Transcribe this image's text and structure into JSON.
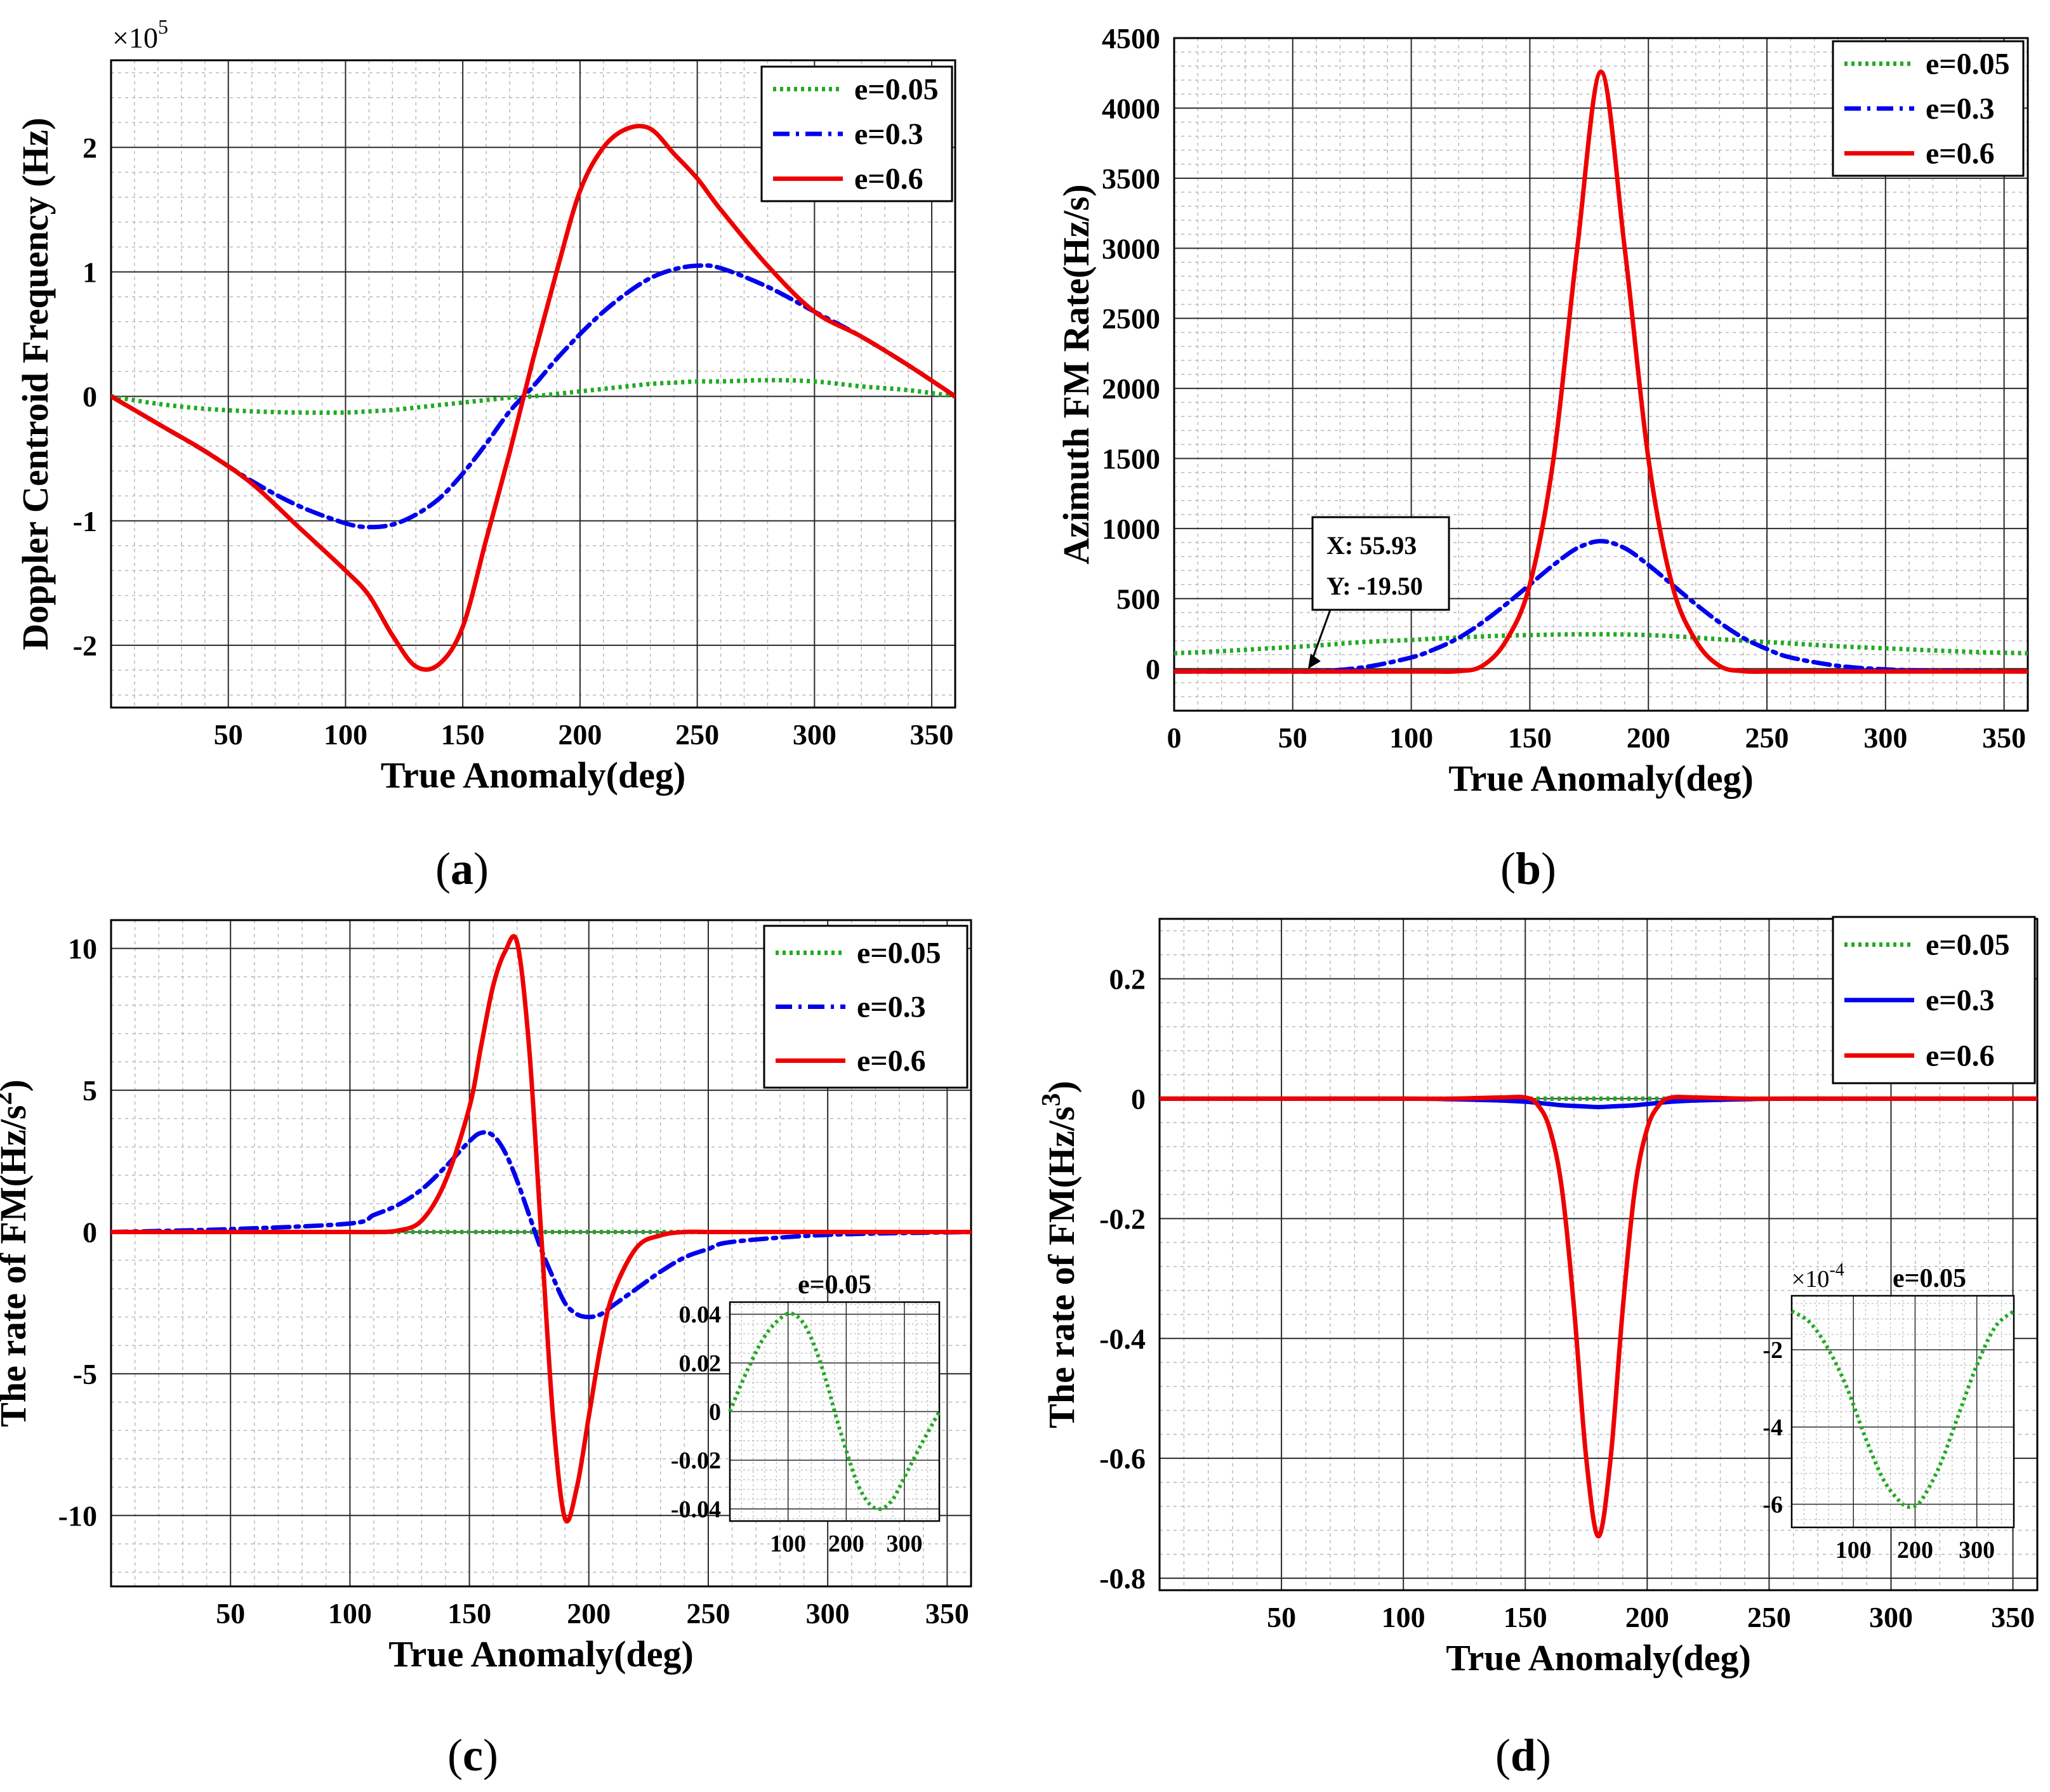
{
  "chart_data": [
    {
      "type": "line",
      "panel_label": "(a)",
      "xlabel": "True Anomaly(deg)",
      "ylabel": "Doppler Centroid Frequency (Hz)",
      "y_multiplier": "×10",
      "y_exponent": "5",
      "xlim": [
        0,
        360
      ],
      "ylim": [
        -2.5,
        2.7
      ],
      "xticks": [
        50,
        100,
        150,
        200,
        250,
        300,
        350
      ],
      "xtick_labels": [
        "50",
        "100",
        "150",
        "200",
        "250",
        "300",
        "350"
      ],
      "yticks": [
        -2,
        -1,
        0,
        1,
        2
      ],
      "ytick_labels": [
        "-2",
        "-1",
        "0",
        "1",
        "2"
      ],
      "grid": true,
      "legend_position": "top-right",
      "x": [
        0,
        20,
        40,
        60,
        80,
        100,
        110,
        120,
        130,
        140,
        150,
        160,
        170,
        180,
        190,
        200,
        210,
        220,
        230,
        240,
        250,
        260,
        280,
        300,
        320,
        340,
        360
      ],
      "series": [
        {
          "name": "e=0.05",
          "color": "#22aa22",
          "style": "dotted",
          "values": [
            0,
            -0.06,
            -0.1,
            -0.12,
            -0.13,
            -0.13,
            -0.12,
            -0.11,
            -0.09,
            -0.07,
            -0.05,
            -0.03,
            -0.01,
            0,
            0.02,
            0.04,
            0.06,
            0.08,
            0.1,
            0.11,
            0.12,
            0.12,
            0.13,
            0.12,
            0.08,
            0.05,
            0
          ]
        },
        {
          "name": "e=0.3",
          "color": "#0000ee",
          "style": "dashdot",
          "values": [
            0,
            -0.22,
            -0.44,
            -0.68,
            -0.88,
            -1.02,
            -1.05,
            -1.03,
            -0.95,
            -0.82,
            -0.62,
            -0.38,
            -0.12,
            0.08,
            0.3,
            0.5,
            0.68,
            0.83,
            0.95,
            1.02,
            1.05,
            1.03,
            0.88,
            0.68,
            0.48,
            0.25,
            0
          ]
        },
        {
          "name": "e=0.6",
          "color": "#ee0000",
          "style": "solid",
          "values": [
            0,
            -0.22,
            -0.44,
            -0.7,
            -1.05,
            -1.4,
            -1.6,
            -1.92,
            -2.17,
            -2.15,
            -1.85,
            -1.15,
            -0.45,
            0.3,
            1.0,
            1.65,
            2.0,
            2.15,
            2.15,
            1.95,
            1.75,
            1.5,
            1.05,
            0.68,
            0.48,
            0.25,
            0
          ]
        }
      ]
    },
    {
      "type": "line",
      "panel_label": "(b)",
      "xlabel": "True Anomaly(deg)",
      "ylabel": "Azimuth FM Rate(Hz/s)",
      "xlim": [
        0,
        360
      ],
      "ylim": [
        -300,
        4500
      ],
      "xticks": [
        0,
        50,
        100,
        150,
        200,
        250,
        300,
        350
      ],
      "xtick_labels": [
        "0",
        "50",
        "100",
        "150",
        "200",
        "250",
        "300",
        "350"
      ],
      "yticks": [
        0,
        500,
        1000,
        1500,
        2000,
        2500,
        3000,
        3500,
        4000,
        4500
      ],
      "ytick_labels": [
        "0",
        "500",
        "1000",
        "1500",
        "2000",
        "2500",
        "3000",
        "3500",
        "4000",
        "4500"
      ],
      "grid": true,
      "legend_position": "top-right",
      "datatip": {
        "x_label": "X: 55.93",
        "y_label": "Y: -19.50",
        "x": 55.93,
        "y": -19.5
      },
      "x": [
        0,
        20,
        40,
        60,
        80,
        100,
        110,
        120,
        130,
        140,
        150,
        160,
        170,
        180,
        190,
        200,
        210,
        220,
        230,
        240,
        250,
        260,
        280,
        300,
        320,
        340,
        360
      ],
      "series": [
        {
          "name": "e=0.05",
          "color": "#22aa22",
          "style": "dotted",
          "values": [
            110,
            125,
            145,
            165,
            190,
            205,
            215,
            222,
            230,
            236,
            240,
            243,
            245,
            245,
            244,
            240,
            232,
            222,
            210,
            200,
            190,
            180,
            160,
            145,
            130,
            118,
            110
          ]
        },
        {
          "name": "e=0.3",
          "color": "#0000ee",
          "style": "dashdot",
          "values": [
            -20,
            -20,
            -19,
            -19,
            10,
            80,
            140,
            220,
            330,
            460,
            600,
            740,
            860,
            910,
            860,
            740,
            600,
            460,
            330,
            220,
            140,
            80,
            20,
            -5,
            -15,
            -18,
            -20
          ]
        },
        {
          "name": "e=0.6",
          "color": "#ee0000",
          "style": "solid",
          "values": [
            -20,
            -20,
            -20,
            -20,
            -20,
            -20,
            -20,
            -18,
            20,
            200,
            600,
            1500,
            3000,
            4260,
            3000,
            1500,
            600,
            200,
            20,
            -18,
            -20,
            -20,
            -20,
            -20,
            -20,
            -20,
            -20
          ]
        }
      ]
    },
    {
      "type": "line",
      "panel_label": "(c)",
      "xlabel": "True Anomaly(deg)",
      "ylabel": "The rate of FM(Hz/s",
      "ylabel_sup": "2",
      "ylabel_tail": ")",
      "xlim": [
        0,
        360
      ],
      "ylim": [
        -12.5,
        11
      ],
      "xticks": [
        50,
        100,
        150,
        200,
        250,
        300,
        350
      ],
      "xtick_labels": [
        "50",
        "100",
        "150",
        "200",
        "250",
        "300",
        "350"
      ],
      "yticks": [
        -10,
        -5,
        0,
        5,
        10
      ],
      "ytick_labels": [
        "-10",
        "-5",
        "0",
        "5",
        "10"
      ],
      "grid": true,
      "legend_position": "top-right",
      "x": [
        0,
        50,
        100,
        110,
        120,
        130,
        140,
        150,
        155,
        160,
        165,
        170,
        175,
        180,
        185,
        190,
        195,
        200,
        205,
        210,
        220,
        230,
        240,
        250,
        260,
        300,
        360
      ],
      "series": [
        {
          "name": "e=0.05",
          "color": "#22aa22",
          "style": "dotted",
          "values": [
            0,
            0,
            0,
            0,
            0,
            0,
            0,
            0,
            0,
            0,
            0,
            0,
            0,
            0,
            0,
            0,
            0,
            0,
            0,
            0,
            0,
            0,
            0,
            0,
            0,
            0,
            0
          ]
        },
        {
          "name": "e=0.3",
          "color": "#0000ee",
          "style": "dashdot",
          "values": [
            0,
            0.1,
            0.3,
            0.6,
            0.95,
            1.5,
            2.3,
            3.2,
            3.5,
            3.4,
            2.8,
            1.8,
            0.6,
            -0.6,
            -1.6,
            -2.5,
            -2.9,
            -3.0,
            -2.9,
            -2.6,
            -2.0,
            -1.4,
            -0.9,
            -0.6,
            -0.35,
            -0.1,
            0
          ]
        },
        {
          "name": "e=0.6",
          "color": "#ee0000",
          "style": "solid",
          "values": [
            0,
            0,
            0,
            0,
            0.05,
            0.4,
            1.8,
            4.4,
            6.6,
            8.7,
            9.9,
            10.2,
            6.5,
            0,
            -6.5,
            -10.1,
            -9.0,
            -6.5,
            -4.0,
            -2.2,
            -0.55,
            -0.12,
            0,
            0,
            0,
            0,
            0
          ]
        }
      ],
      "inset": {
        "title": "e=0.05",
        "xlim": [
          0,
          360
        ],
        "ylim": [
          -0.045,
          0.045
        ],
        "xticks": [
          100,
          200,
          300
        ],
        "xtick_labels": [
          "100",
          "200",
          "300"
        ],
        "yticks": [
          0.04,
          0.02,
          0,
          -0.02,
          -0.04
        ],
        "ytick_labels": [
          "0.04",
          "0.02",
          "0",
          "-0.02",
          "-0.04"
        ],
        "x": [
          0,
          30,
          60,
          90,
          110,
          130,
          150,
          170,
          180,
          200,
          220,
          240,
          260,
          280,
          300,
          330,
          360
        ],
        "values": [
          0,
          0.017,
          0.031,
          0.039,
          0.04,
          0.035,
          0.024,
          0.009,
          0,
          -0.016,
          -0.03,
          -0.038,
          -0.04,
          -0.036,
          -0.027,
          -0.013,
          0
        ]
      }
    },
    {
      "type": "line",
      "panel_label": "(d)",
      "xlabel": "True Anomaly(deg)",
      "ylabel": "The rate of FM(Hz/s",
      "ylabel_sup": "3",
      "ylabel_tail": ")",
      "xlim": [
        0,
        360
      ],
      "ylim": [
        -0.82,
        0.3
      ],
      "xticks": [
        50,
        100,
        150,
        200,
        250,
        300,
        350
      ],
      "xtick_labels": [
        "50",
        "100",
        "150",
        "200",
        "250",
        "300",
        "350"
      ],
      "yticks": [
        0.2,
        0,
        -0.2,
        -0.4,
        -0.6,
        -0.8
      ],
      "ytick_labels": [
        "0.2",
        "0",
        "-0.2",
        "-0.4",
        "-0.6",
        "-0.8"
      ],
      "grid": true,
      "legend_position": "top-right",
      "x": [
        0,
        100,
        120,
        140,
        150,
        155,
        160,
        165,
        170,
        175,
        180,
        185,
        190,
        195,
        200,
        205,
        210,
        220,
        240,
        260,
        360
      ],
      "series": [
        {
          "name": "e=0.05",
          "color": "#22aa22",
          "style": "dotted",
          "values": [
            0,
            0,
            0,
            0,
            0,
            0,
            0,
            0,
            0,
            0,
            0,
            0,
            0,
            0,
            0,
            0,
            0,
            0,
            0,
            0,
            0
          ]
        },
        {
          "name": "e=0.3",
          "color": "#0000ee",
          "style": "solid",
          "values": [
            0,
            0,
            -0.001,
            -0.003,
            -0.005,
            -0.007,
            -0.009,
            -0.011,
            -0.012,
            -0.013,
            -0.014,
            -0.013,
            -0.012,
            -0.011,
            -0.009,
            -0.007,
            -0.005,
            -0.003,
            -0.001,
            0,
            0
          ]
        },
        {
          "name": "e=0.6",
          "color": "#ee0000",
          "style": "solid",
          "values": [
            0,
            0,
            0,
            0.002,
            0.002,
            -0.01,
            -0.05,
            -0.15,
            -0.35,
            -0.6,
            -0.73,
            -0.6,
            -0.35,
            -0.15,
            -0.05,
            -0.01,
            0.002,
            0.002,
            0,
            0,
            0
          ]
        }
      ],
      "inset": {
        "title": "e=0.05",
        "y_multiplier": "×10",
        "y_exponent": "-4",
        "xlim": [
          0,
          360
        ],
        "ylim": [
          -6.6,
          -0.6
        ],
        "xticks": [
          100,
          200,
          300
        ],
        "xtick_labels": [
          "100",
          "200",
          "300"
        ],
        "yticks": [
          -2,
          -4,
          -6
        ],
        "ytick_labels": [
          "-2",
          "-4",
          "-6"
        ],
        "x": [
          0,
          30,
          60,
          90,
          120,
          150,
          180,
          195,
          210,
          240,
          270,
          300,
          330,
          360
        ],
        "values": [
          -1.0,
          -1.3,
          -2.0,
          -3.0,
          -4.3,
          -5.4,
          -6.0,
          -6.05,
          -5.9,
          -5.0,
          -3.7,
          -2.4,
          -1.4,
          -1.0
        ]
      }
    }
  ]
}
